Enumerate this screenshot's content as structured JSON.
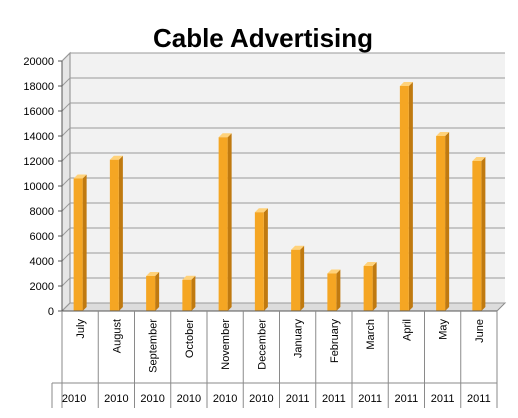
{
  "chart_data": {
    "type": "bar",
    "title": "Cable Advertising",
    "categories": [
      "July",
      "August",
      "September",
      "October",
      "November",
      "December",
      "January",
      "February",
      "March",
      "April",
      "May",
      "June"
    ],
    "years": [
      "2010",
      "2010",
      "2010",
      "2010",
      "2010",
      "2010",
      "2011",
      "2011",
      "2011",
      "2011",
      "2011",
      "2011"
    ],
    "values": [
      10600,
      12100,
      2800,
      2500,
      13900,
      7900,
      4900,
      3000,
      3600,
      18000,
      14000,
      12000
    ],
    "ylim": [
      0,
      20000
    ],
    "yticks": [
      0,
      2000,
      4000,
      6000,
      8000,
      10000,
      12000,
      14000,
      16000,
      18000,
      20000
    ],
    "grid": true,
    "legend": "none",
    "colors": {
      "bar_front": "#f5a623",
      "bar_side": "#c07a10",
      "bar_top": "#ffd27a",
      "grid": "#9a9a9a",
      "back_wall": "#f2f2f2"
    }
  }
}
